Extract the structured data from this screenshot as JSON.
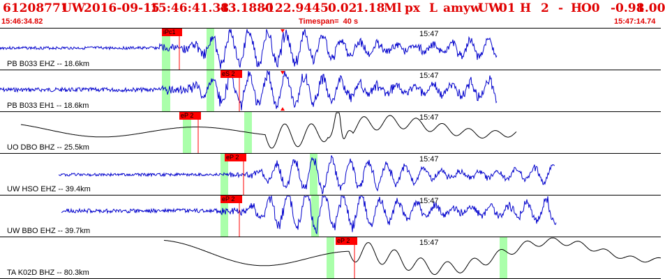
{
  "header": {
    "event_id": "61208771",
    "network": "UW",
    "origin_date": "2016-09-15",
    "origin_time": "15:46:41.38",
    "latitude": "43.1880",
    "longitude": "-122.9445",
    "depth": "0.02",
    "magnitude": "1.18",
    "magnitude_type": "Ml",
    "event_type": "px",
    "event_subtype": "L",
    "author": "amyw",
    "source_network": "UW",
    "version": "01",
    "quality": "H",
    "count": "2",
    "dash": "-",
    "review": "H",
    "flag": "O0",
    "residual": "-0.98",
    "weight": "1.00",
    "start_time": "15:46:34.82",
    "timespan": "Timespan=  40 s",
    "end_time": "15:47:14.74"
  },
  "traces": [
    {
      "label": "PB B033 EHZ -- 18.6km",
      "time_mark": "15:47",
      "pick": "iPc1",
      "color": "#0000cc"
    },
    {
      "label": "PB B033 EH1 -- 18.6km",
      "time_mark": "15:47",
      "pick": "eS 2",
      "color": "#0000cc"
    },
    {
      "label": "UO DBO BHZ -- 25.5km",
      "time_mark": "15:47",
      "pick": "eP 2",
      "color": "#000000"
    },
    {
      "label": "UW HSO EHZ -- 39.4km",
      "time_mark": "15:47",
      "pick": "eP 2",
      "color": "#0000cc"
    },
    {
      "label": "UW BBO EHZ -- 39.7km",
      "time_mark": "15:47",
      "pick": "eP 2",
      "color": "#0000cc"
    },
    {
      "label": "TA K02D BHZ -- 80.3km",
      "time_mark": "15:47",
      "pick": "eP 2",
      "color": "#000000"
    }
  ],
  "colors": {
    "header_text": "#e00000",
    "pick_flag": "#ff0000",
    "window_band": "#aaffaa",
    "trace_blue": "#0000cc",
    "trace_black": "#000000"
  }
}
